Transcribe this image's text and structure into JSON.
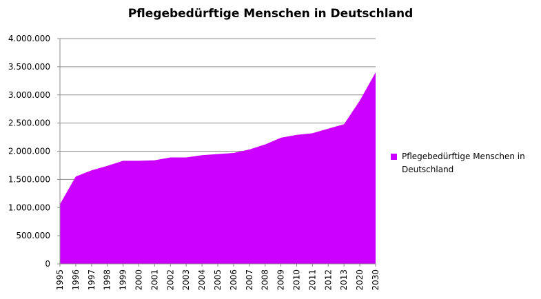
{
  "chart_data": {
    "type": "area",
    "title": "Pflegebedürftige Menschen in Deutschland",
    "xlabel": "",
    "ylabel": "",
    "categories": [
      "1995",
      "1996",
      "1997",
      "1998",
      "1999",
      "2000",
      "2001",
      "2002",
      "2003",
      "2004",
      "2005",
      "2006",
      "2007",
      "2008",
      "2009",
      "2010",
      "2011",
      "2012",
      "2013",
      "2020",
      "2030"
    ],
    "series": [
      {
        "name": "Pflegebedürftige Menschen in Deutschland",
        "color": "#cc00ff",
        "values": [
          1060000,
          1550000,
          1660000,
          1740000,
          1830000,
          1830000,
          1840000,
          1890000,
          1890000,
          1930000,
          1950000,
          1970000,
          2030000,
          2120000,
          2240000,
          2290000,
          2320000,
          2400000,
          2480000,
          2900000,
          3400000
        ]
      }
    ],
    "ylim": [
      0,
      4000000
    ],
    "yticks": [
      0,
      500000,
      1000000,
      1500000,
      2000000,
      2500000,
      3000000,
      3500000,
      4000000
    ],
    "ytick_labels": [
      "0",
      "500.000",
      "1.000.000",
      "1.500.000",
      "2.000.000",
      "2.500.000",
      "3.000.000",
      "3.500.000",
      "4.000.000"
    ],
    "grid": true,
    "legend_position": "right"
  }
}
